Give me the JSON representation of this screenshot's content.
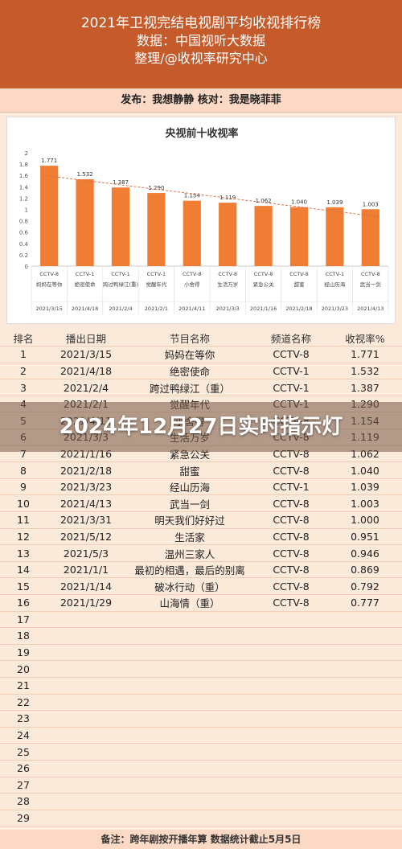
{
  "header": {
    "line1": "2021年卫视完结电视剧平均收视排行榜",
    "line2": "数据：中国视听大数据",
    "line3": "整理/@收视率研究中心"
  },
  "pubbar": {
    "text": "发布：我想静静     核对：我是晓菲菲"
  },
  "chart_data": {
    "type": "bar",
    "title": "央视前十收视率",
    "ylim": [
      0,
      2
    ],
    "yticks": [
      "0",
      "0.2",
      "0.4",
      "0.6",
      "0.8",
      "1",
      "1.2",
      "1.4",
      "1.6",
      "1.8",
      "2"
    ],
    "categories": [
      "妈妈在等你",
      "绝密使命",
      "跨过鸭绿江(重)",
      "觉醒年代",
      "小舍得",
      "生活万岁",
      "紧急公关",
      "甜蜜",
      "经山历海",
      "武当一剑"
    ],
    "channels": [
      "CCTV-8",
      "CCTV-1",
      "CCTV-1",
      "CCTV-1",
      "CCTV-8",
      "CCTV-8",
      "CCTV-8",
      "CCTV-8",
      "CCTV-1",
      "CCTV-8"
    ],
    "dates": [
      "2021/3/15",
      "2021/4/18",
      "2021/2/4",
      "2021/2/1",
      "2021/4/11",
      "2021/3/3",
      "2021/1/16",
      "2021/2/18",
      "2021/3/23",
      "2021/4/13"
    ],
    "values": [
      1.771,
      1.532,
      1.387,
      1.29,
      1.154,
      1.119,
      1.062,
      1.04,
      1.039,
      1.003
    ],
    "value_labels": [
      "1.771",
      "1.532",
      "1.387",
      "1.290",
      "1.154",
      "1.119",
      "1.062",
      "1.040",
      "1.039",
      "1.003"
    ],
    "trendline": true,
    "grid": false
  },
  "table": {
    "headers": [
      "排名",
      "播出日期",
      "节目名称",
      "频道名称",
      "收视率%"
    ],
    "rows": [
      [
        "1",
        "2021/3/15",
        "妈妈在等你",
        "CCTV-8",
        "1.771"
      ],
      [
        "2",
        "2021/4/18",
        "绝密使命",
        "CCTV-1",
        "1.532"
      ],
      [
        "3",
        "2021/2/4",
        "跨过鸭绿江（重）",
        "CCTV-1",
        "1.387"
      ],
      [
        "4",
        "2021/2/1",
        "觉醒年代",
        "CCTV-1",
        "1.290"
      ],
      [
        "5",
        "2021/4/11",
        "小舍得",
        "CCTV-8",
        "1.154"
      ],
      [
        "6",
        "2021/3/3",
        "生活万岁",
        "CCTV-8",
        "1.119"
      ],
      [
        "7",
        "2021/1/16",
        "紧急公关",
        "CCTV-8",
        "1.062"
      ],
      [
        "8",
        "2021/2/18",
        "甜蜜",
        "CCTV-8",
        "1.040"
      ],
      [
        "9",
        "2021/3/23",
        "经山历海",
        "CCTV-1",
        "1.039"
      ],
      [
        "10",
        "2021/4/13",
        "武当一剑",
        "CCTV-8",
        "1.003"
      ],
      [
        "11",
        "2021/3/31",
        "明天我们好好过",
        "CCTV-8",
        "1.000"
      ],
      [
        "12",
        "2021/5/12",
        "生活家",
        "CCTV-8",
        "0.951"
      ],
      [
        "13",
        "2021/5/3",
        "温州三家人",
        "CCTV-8",
        "0.946"
      ],
      [
        "14",
        "2021/1/1",
        "最初的相遇，最后的别离",
        "CCTV-8",
        "0.869"
      ],
      [
        "15",
        "2021/1/14",
        "破冰行动（重）",
        "CCTV-8",
        "0.792"
      ],
      [
        "16",
        "2021/1/29",
        "山海情（重）",
        "CCTV-8",
        "0.777"
      ],
      [
        "17",
        "",
        "",
        "",
        ""
      ],
      [
        "18",
        "",
        "",
        "",
        ""
      ],
      [
        "19",
        "",
        "",
        "",
        ""
      ],
      [
        "20",
        "",
        "",
        "",
        ""
      ],
      [
        "21",
        "",
        "",
        "",
        ""
      ],
      [
        "22",
        "",
        "",
        "",
        ""
      ],
      [
        "23",
        "",
        "",
        "",
        ""
      ],
      [
        "24",
        "",
        "",
        "",
        ""
      ],
      [
        "25",
        "",
        "",
        "",
        ""
      ],
      [
        "26",
        "",
        "",
        "",
        ""
      ],
      [
        "27",
        "",
        "",
        "",
        ""
      ],
      [
        "28",
        "",
        "",
        "",
        ""
      ],
      [
        "29",
        "",
        "",
        "",
        ""
      ]
    ]
  },
  "footer": {
    "text": "备注：跨年剧按开播年算   数据统计截止5月5日"
  },
  "overlay": {
    "text": "2024年12月27日实时指示灯"
  },
  "colors": {
    "header_bg": "#c55a2b",
    "bar": "#ef7d33",
    "trend": "#d9734a"
  }
}
